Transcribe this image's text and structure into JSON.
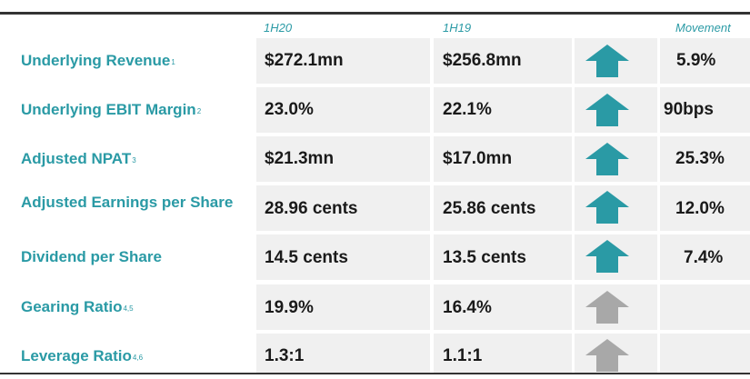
{
  "headers": {
    "col1": "1H20",
    "col2": "1H19",
    "movement": "Movement"
  },
  "arrow_colors": {
    "up": "#2a9aa5",
    "neutral": "#a8a8a8"
  },
  "rows": [
    {
      "label": "Underlying Revenue",
      "note": "1",
      "h1h20": "$272.1mn",
      "h1h19": "$256.8mn",
      "arrow": "up-arrow-icon",
      "movement": "5.9%"
    },
    {
      "label": "Underlying EBIT Margin",
      "note": "2",
      "h1h20": "23.0%",
      "h1h19": "22.1%",
      "arrow": "up-arrow-icon",
      "movement": "90bps"
    },
    {
      "label": "Adjusted NPAT",
      "note": "3",
      "h1h20": "$21.3mn",
      "h1h19": "$17.0mn",
      "arrow": "up-arrow-icon",
      "movement": "25.3%"
    },
    {
      "label": "Adjusted Earnings per Share",
      "note": "",
      "h1h20": "28.96 cents",
      "h1h19": "25.86 cents",
      "arrow": "up-arrow-icon",
      "movement": "12.0%"
    },
    {
      "label": "Dividend per Share",
      "note": "",
      "h1h20": "14.5 cents",
      "h1h19": "13.5 cents",
      "arrow": "up-arrow-icon",
      "movement": "7.4%"
    },
    {
      "label": "Gearing Ratio",
      "note": "4,5",
      "h1h20": "19.9%",
      "h1h19": "16.4%",
      "arrow": "up-arrow-grey-icon",
      "movement": ""
    },
    {
      "label": "Leverage Ratio",
      "note": "4,6",
      "h1h20": "1.3:1",
      "h1h19": "1.1:1",
      "arrow": "up-arrow-grey-icon",
      "movement": ""
    }
  ]
}
